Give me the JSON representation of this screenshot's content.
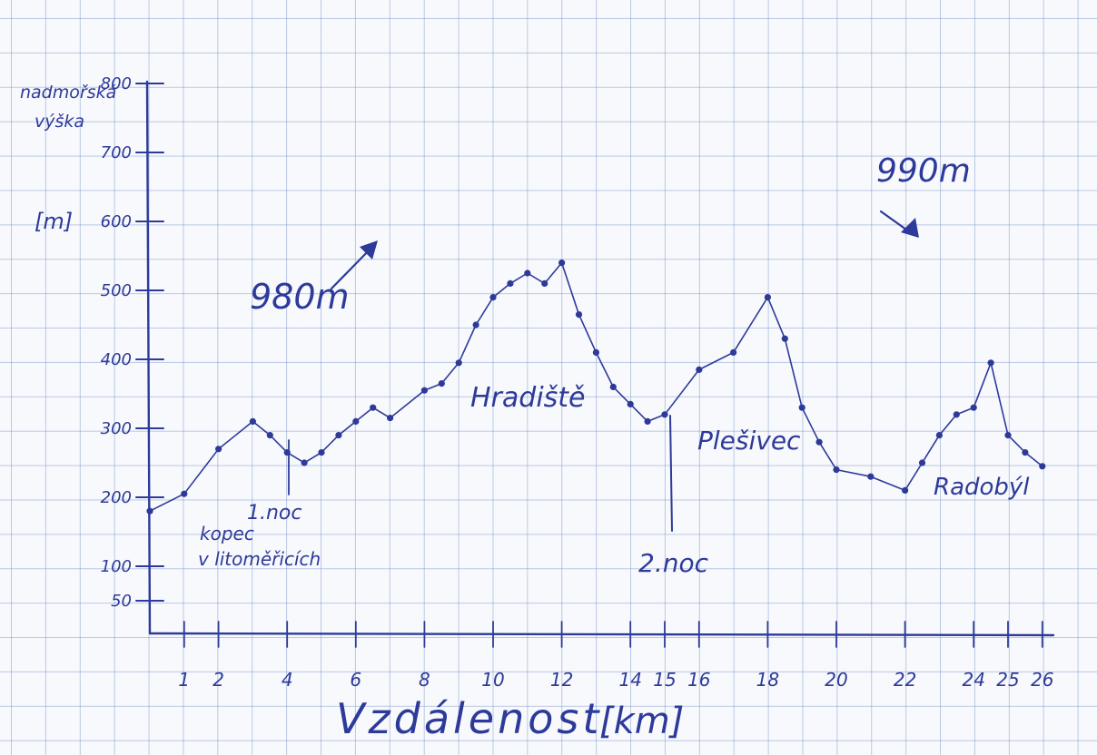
{
  "chart_data": {
    "type": "line",
    "ylabel": "nadmořská výška",
    "ylabel_unit": "[m]",
    "xlabel": "Vzdálenost",
    "xlabel_unit": "[km]",
    "ylim": [
      50,
      800
    ],
    "xlim": [
      0,
      26
    ],
    "y_ticks": [
      50,
      100,
      200,
      300,
      400,
      500,
      600,
      700,
      800
    ],
    "y_tick_labels": [
      "50",
      "100",
      "200",
      "300",
      "400",
      "500",
      "600",
      "700",
      "800"
    ],
    "x_ticks": [
      1,
      2,
      4,
      6,
      8,
      10,
      12,
      14,
      15,
      16,
      18,
      20,
      22,
      24,
      25,
      26
    ],
    "x_tick_labels": [
      "1",
      "2",
      "4",
      "6",
      "8",
      "10",
      "12",
      "14",
      "15",
      "16",
      "18",
      "20",
      "22",
      "24",
      "25",
      "26"
    ],
    "grid": true,
    "series": [
      {
        "x": [
          0,
          1,
          2,
          3,
          3.5,
          4,
          4.5,
          5,
          5.5,
          6,
          6.5,
          7,
          8,
          8.5,
          9,
          9.5,
          10,
          10.5,
          11,
          11.5,
          12,
          12.5,
          13,
          13.5,
          14,
          14.5,
          15,
          16,
          17,
          18,
          18.5,
          19,
          19.5,
          20,
          21,
          22,
          22.5,
          23,
          23.5,
          24,
          24.5,
          25,
          25.5,
          26
        ],
        "y": [
          180,
          205,
          270,
          310,
          290,
          265,
          250,
          265,
          290,
          310,
          330,
          315,
          355,
          365,
          395,
          450,
          490,
          510,
          525,
          510,
          540,
          465,
          410,
          360,
          335,
          310,
          320,
          385,
          410,
          490,
          430,
          330,
          280,
          240,
          230,
          210,
          250,
          290,
          320,
          330,
          395,
          290,
          265,
          245
        ]
      }
    ],
    "annotations": [
      {
        "text": "980m"
      },
      {
        "text": "990m"
      },
      {
        "text": "Hradiště"
      },
      {
        "text": "Plešivec"
      },
      {
        "text": "Radobýl"
      },
      {
        "text": "kopec v litoměřicích"
      },
      {
        "text": "1.noc"
      },
      {
        "text": "2.noc"
      }
    ]
  },
  "title": "",
  "colors": {
    "ink": "#2d3a9a",
    "grid": "#8aa2d6",
    "paper": "#f8f9fc"
  }
}
